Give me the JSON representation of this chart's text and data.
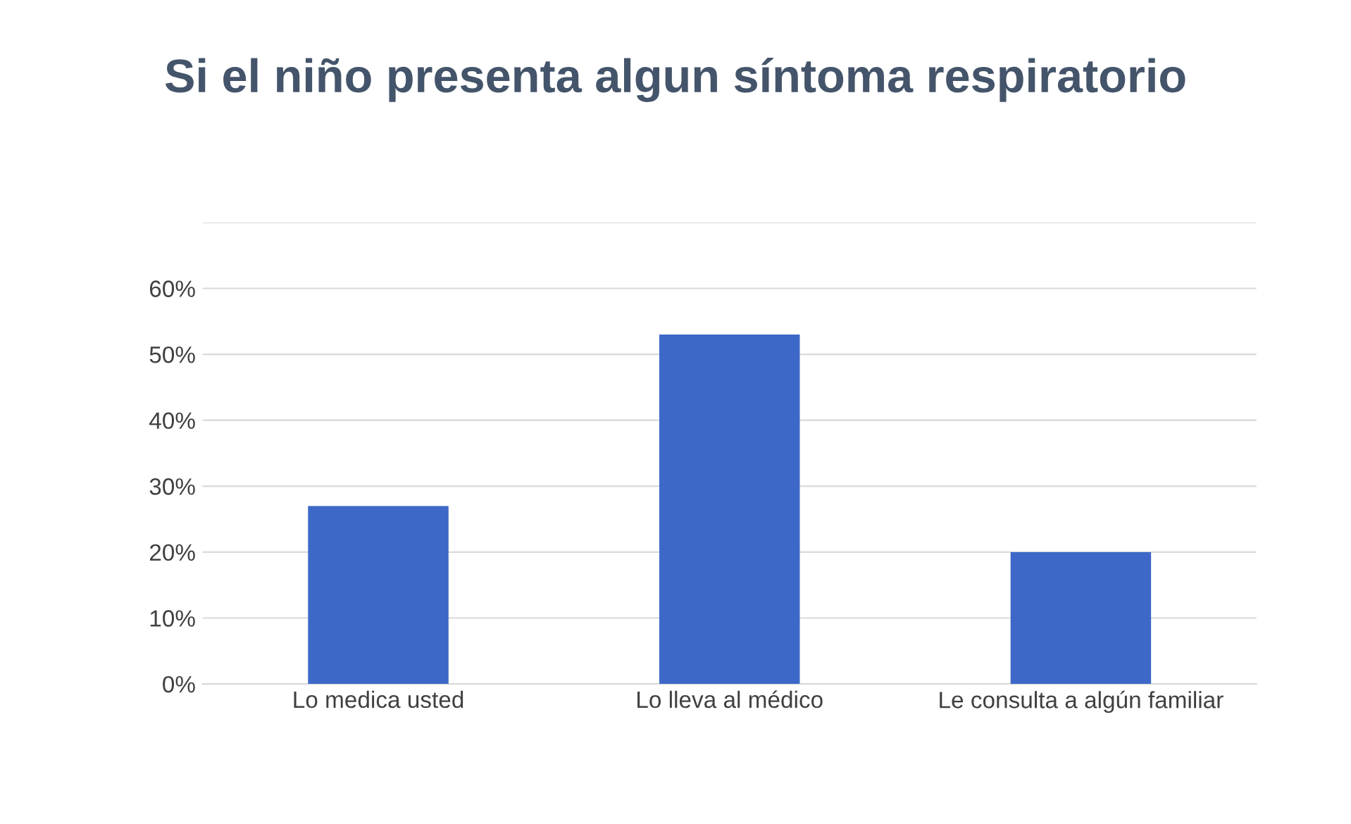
{
  "chart_data": {
    "type": "bar",
    "title": "Si el niño presenta algun síntoma respiratorio",
    "categories": [
      "Lo medica usted",
      "Lo lleva al médico",
      "Le consulta a algún familiar"
    ],
    "values": [
      27,
      53,
      20
    ],
    "color": "#3d68c8",
    "ylim": [
      0,
      70
    ],
    "yticks": [
      {
        "value": 0,
        "label": "0%"
      },
      {
        "value": 10,
        "label": "10%"
      },
      {
        "value": 20,
        "label": "20%"
      },
      {
        "value": 30,
        "label": "30%"
      },
      {
        "value": 40,
        "label": "40%"
      },
      {
        "value": 50,
        "label": "50%"
      },
      {
        "value": 60,
        "label": "60%"
      },
      {
        "value": 70,
        "label": null
      }
    ],
    "grid": "y",
    "legend": false
  }
}
